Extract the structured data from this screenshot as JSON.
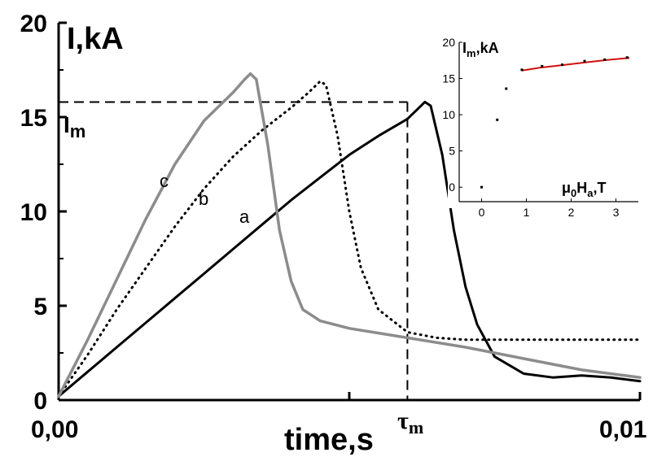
{
  "chart_data": [
    {
      "type": "line",
      "x_axis": {
        "label": "time,s",
        "xlim": [
          0,
          0.01
        ],
        "tick_labels": [
          "0,00",
          "0,01"
        ],
        "tau_label": "τ",
        "tau_sub": "m"
      },
      "y_axis": {
        "label": "I,kA",
        "ylim": [
          0,
          20
        ],
        "ticks": [
          0,
          5,
          10,
          15,
          20
        ]
      },
      "reference": {
        "label": "I",
        "label_sub": "m",
        "I_m": 15.8,
        "tau_m": 0.006
      },
      "series": [
        {
          "name": "a",
          "color": "#000000",
          "style": "solid",
          "points": [
            [
              0,
              0.2
            ],
            [
              0.0005,
              1.5
            ],
            [
              0.001,
              2.8
            ],
            [
              0.0015,
              4.1
            ],
            [
              0.002,
              5.4
            ],
            [
              0.0025,
              6.7
            ],
            [
              0.003,
              8.0
            ],
            [
              0.0035,
              9.3
            ],
            [
              0.004,
              10.6
            ],
            [
              0.0045,
              11.8
            ],
            [
              0.005,
              13.0
            ],
            [
              0.0055,
              14.0
            ],
            [
              0.006,
              14.9
            ],
            [
              0.0062,
              15.5
            ],
            [
              0.0063,
              15.8
            ],
            [
              0.0064,
              15.6
            ],
            [
              0.0066,
              13.0
            ],
            [
              0.0068,
              9.0
            ],
            [
              0.007,
              6.0
            ],
            [
              0.0072,
              4.0
            ],
            [
              0.0075,
              2.3
            ],
            [
              0.008,
              1.4
            ],
            [
              0.0085,
              1.2
            ],
            [
              0.009,
              1.3
            ],
            [
              0.0095,
              1.2
            ],
            [
              0.01,
              1.0
            ]
          ]
        },
        {
          "name": "b",
          "color": "#000000",
          "style": "dotted",
          "points": [
            [
              0,
              0.2
            ],
            [
              0.0005,
              2.4
            ],
            [
              0.001,
              4.8
            ],
            [
              0.0015,
              7.0
            ],
            [
              0.002,
              9.2
            ],
            [
              0.0025,
              11.2
            ],
            [
              0.003,
              12.9
            ],
            [
              0.0035,
              14.3
            ],
            [
              0.004,
              15.5
            ],
            [
              0.0043,
              16.3
            ],
            [
              0.0045,
              16.9
            ],
            [
              0.0046,
              16.7
            ],
            [
              0.0048,
              14.0
            ],
            [
              0.005,
              10.0
            ],
            [
              0.0052,
              7.0
            ],
            [
              0.0055,
              4.8
            ],
            [
              0.006,
              3.6
            ],
            [
              0.0065,
              3.3
            ],
            [
              0.007,
              3.2
            ],
            [
              0.008,
              3.2
            ],
            [
              0.009,
              3.2
            ],
            [
              0.01,
              3.2
            ]
          ]
        },
        {
          "name": "c",
          "color": "#8c8c8c",
          "style": "solid",
          "points": [
            [
              0,
              0.2
            ],
            [
              0.0005,
              3.2
            ],
            [
              0.001,
              6.4
            ],
            [
              0.0015,
              9.6
            ],
            [
              0.002,
              12.5
            ],
            [
              0.0025,
              14.8
            ],
            [
              0.003,
              16.3
            ],
            [
              0.0032,
              17.0
            ],
            [
              0.0033,
              17.3
            ],
            [
              0.0034,
              17.0
            ],
            [
              0.0036,
              13.5
            ],
            [
              0.0038,
              9.0
            ],
            [
              0.004,
              6.3
            ],
            [
              0.0042,
              4.8
            ],
            [
              0.0045,
              4.2
            ],
            [
              0.005,
              3.8
            ],
            [
              0.006,
              3.3
            ],
            [
              0.007,
              2.8
            ],
            [
              0.008,
              2.2
            ],
            [
              0.009,
              1.6
            ],
            [
              0.01,
              1.2
            ]
          ]
        }
      ]
    },
    {
      "type": "scatter",
      "inset": true,
      "x_axis": {
        "label_main": "μ",
        "label_sub1": "0",
        "label_mid": "H",
        "label_sub2": "a",
        "label_tail": ",T",
        "xlim": [
          -0.5,
          3.5
        ],
        "ticks": [
          0,
          1,
          2,
          3
        ]
      },
      "y_axis": {
        "label_main": "I",
        "label_sub": "m",
        "label_tail": ",kA",
        "ylim": [
          -2,
          20
        ],
        "ticks": [
          0,
          5,
          10,
          15,
          20
        ]
      },
      "points": [
        [
          0,
          0
        ],
        [
          0.35,
          9.3
        ],
        [
          0.55,
          13.6
        ],
        [
          0.9,
          16.2
        ],
        [
          1.35,
          16.7
        ],
        [
          1.8,
          16.9
        ],
        [
          2.3,
          17.4
        ],
        [
          2.75,
          17.6
        ],
        [
          3.25,
          17.9
        ]
      ],
      "fit": {
        "color": "#d01010",
        "points": [
          [
            0.9,
            16.1
          ],
          [
            1.3,
            16.5
          ],
          [
            1.8,
            16.85
          ],
          [
            2.3,
            17.2
          ],
          [
            2.8,
            17.55
          ],
          [
            3.3,
            17.85
          ]
        ]
      }
    }
  ]
}
